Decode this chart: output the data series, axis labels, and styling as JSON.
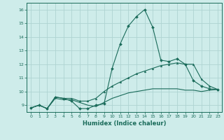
{
  "xlabel": "Humidex (Indice chaleur)",
  "bg_color": "#ceecea",
  "grid_color": "#aed4d2",
  "line_color": "#1a6b5a",
  "xlim": [
    -0.5,
    23.5
  ],
  "ylim": [
    8.5,
    16.5
  ],
  "yticks": [
    9,
    10,
    11,
    12,
    13,
    14,
    15,
    16
  ],
  "xticks": [
    0,
    1,
    2,
    3,
    4,
    5,
    6,
    7,
    8,
    9,
    10,
    11,
    12,
    13,
    14,
    15,
    16,
    17,
    18,
    19,
    20,
    21,
    22,
    23
  ],
  "series1_x": [
    0,
    1,
    2,
    3,
    4,
    5,
    6,
    7,
    8,
    9,
    10,
    11,
    12,
    13,
    14,
    15,
    16,
    17,
    18,
    19,
    20,
    21,
    22,
    23
  ],
  "series1_y": [
    8.8,
    9.0,
    8.75,
    9.6,
    9.5,
    9.3,
    8.75,
    8.75,
    9.0,
    9.1,
    11.7,
    13.5,
    14.8,
    15.5,
    16.0,
    14.7,
    12.3,
    12.2,
    12.4,
    12.0,
    10.8,
    10.4,
    10.2,
    10.15
  ],
  "series2_x": [
    0,
    1,
    2,
    3,
    4,
    5,
    6,
    7,
    8,
    9,
    10,
    11,
    12,
    13,
    14,
    15,
    16,
    17,
    18,
    19,
    20,
    21,
    22,
    23
  ],
  "series2_y": [
    8.8,
    9.0,
    8.75,
    9.6,
    9.5,
    9.5,
    9.3,
    9.3,
    9.5,
    10.0,
    10.4,
    10.7,
    11.0,
    11.3,
    11.5,
    11.7,
    11.9,
    12.0,
    12.1,
    12.0,
    12.0,
    10.9,
    10.4,
    10.15
  ],
  "series3_x": [
    0,
    1,
    2,
    3,
    4,
    5,
    6,
    7,
    8,
    9,
    10,
    11,
    12,
    13,
    14,
    15,
    16,
    17,
    18,
    19,
    20,
    21,
    22,
    23
  ],
  "series3_y": [
    8.8,
    9.0,
    8.75,
    9.5,
    9.4,
    9.4,
    9.2,
    9.0,
    8.9,
    9.2,
    9.5,
    9.7,
    9.9,
    10.0,
    10.1,
    10.2,
    10.2,
    10.2,
    10.2,
    10.1,
    10.1,
    10.0,
    10.1,
    10.15
  ]
}
